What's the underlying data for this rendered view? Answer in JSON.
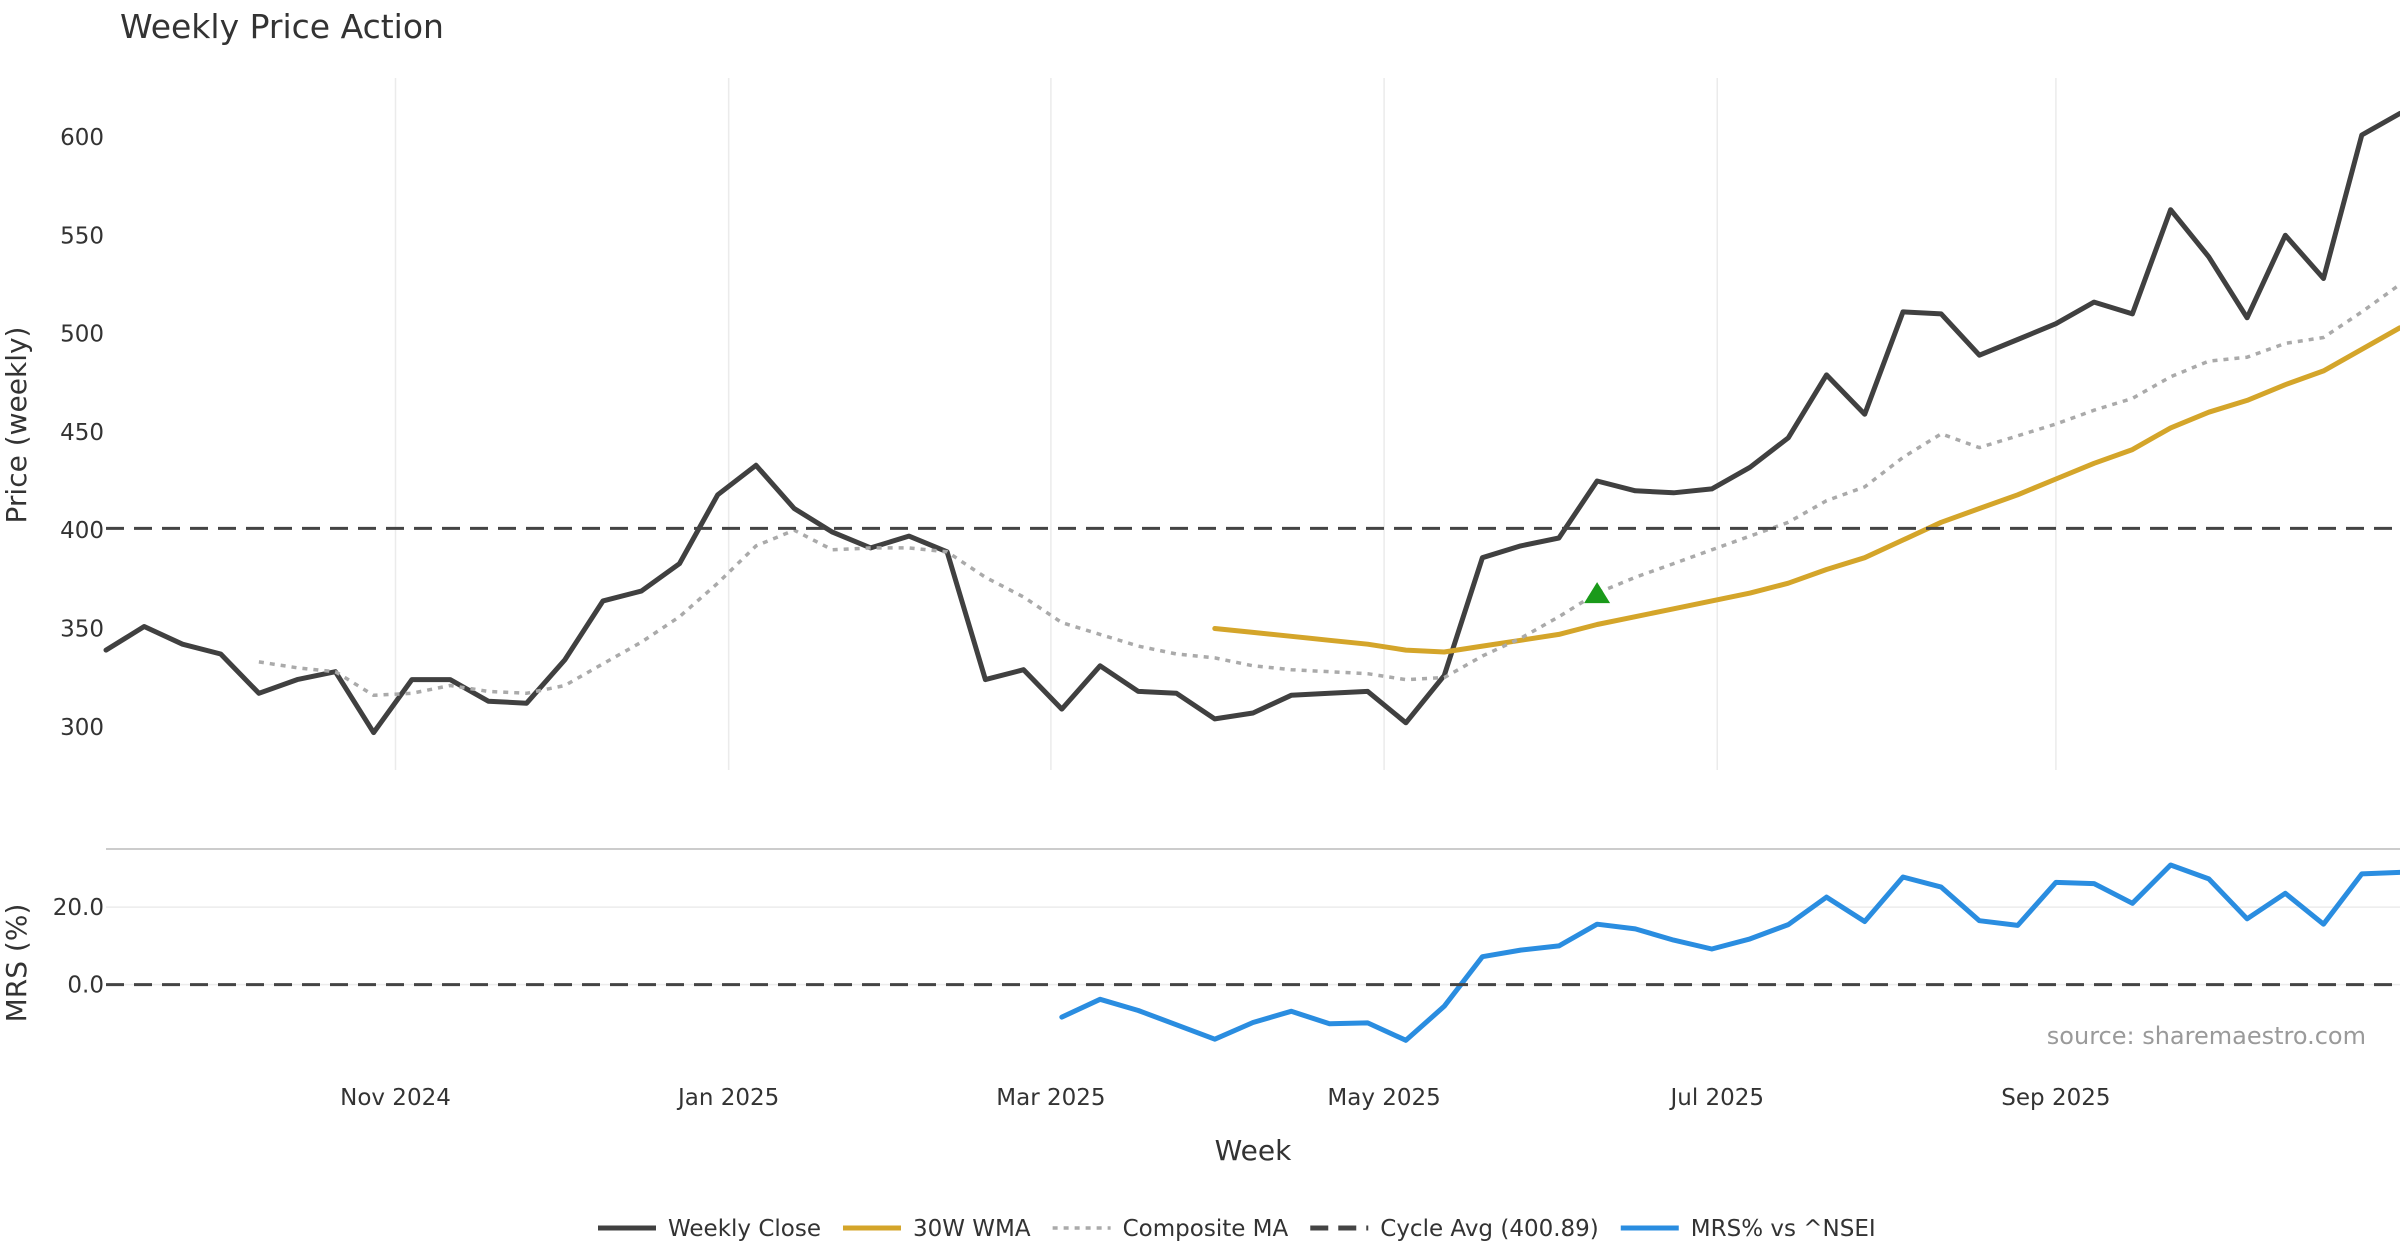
{
  "chart_data": {
    "title": "Weekly Price Action",
    "source_text": "source: sharemaestro.com",
    "xlabel": "Week",
    "x_tick_labels": [
      "Nov 2024",
      "Jan 2025",
      "Mar 2025",
      "May 2025",
      "Jul 2025",
      "Sep 2025"
    ],
    "panels": [
      {
        "name": "price",
        "type": "line",
        "ylabel": "Price (weekly)",
        "ylim": [
          278,
          630
        ],
        "yticks": [
          "300",
          "350",
          "400",
          "450",
          "500",
          "550",
          "600"
        ],
        "grid": true
      },
      {
        "name": "mrs",
        "type": "line",
        "ylabel": "MRS (%)",
        "ylim": [
          -20,
          34
        ],
        "yticks": [
          "0.0",
          "20.0"
        ],
        "grid": true
      }
    ],
    "series": [
      {
        "name": "Weekly Close",
        "panel": "price",
        "color": "#404040",
        "style": "solid",
        "x": [
          "2024-09-09",
          "2024-09-16",
          "2024-09-23",
          "2024-09-30",
          "2024-10-07",
          "2024-10-14",
          "2024-10-21",
          "2024-10-28",
          "2024-11-04",
          "2024-11-11",
          "2024-11-18",
          "2024-11-25",
          "2024-12-02",
          "2024-12-09",
          "2024-12-16",
          "2024-12-23",
          "2024-12-30",
          "2025-01-06",
          "2025-01-13",
          "2025-01-20",
          "2025-01-27",
          "2025-02-03",
          "2025-02-10",
          "2025-02-17",
          "2025-02-24",
          "2025-03-03",
          "2025-03-10",
          "2025-03-17",
          "2025-03-24",
          "2025-03-31",
          "2025-04-07",
          "2025-04-14",
          "2025-04-21",
          "2025-04-28",
          "2025-05-05",
          "2025-05-12",
          "2025-05-19",
          "2025-05-26",
          "2025-06-02",
          "2025-06-09",
          "2025-06-16",
          "2025-06-23",
          "2025-06-30",
          "2025-07-07",
          "2025-07-14",
          "2025-07-21",
          "2025-07-28",
          "2025-08-04",
          "2025-08-11",
          "2025-08-18",
          "2025-08-25",
          "2025-09-01",
          "2025-09-08",
          "2025-09-15",
          "2025-09-22",
          "2025-09-29",
          "2025-10-06",
          "2025-10-13",
          "2025-10-20",
          "2025-10-27",
          "2025-11-03"
        ],
        "values": [
          339,
          351,
          342,
          337,
          317,
          324,
          328,
          297,
          324,
          324,
          313,
          312,
          334,
          364,
          369,
          383,
          418,
          433,
          411,
          399,
          391,
          397,
          389,
          324,
          329,
          309,
          331,
          318,
          317,
          304,
          307,
          316,
          317,
          318,
          302,
          326,
          386,
          392,
          396,
          425,
          420,
          419,
          421,
          432,
          447,
          479,
          459,
          511,
          510,
          489,
          497,
          505,
          516,
          510,
          563,
          539,
          508,
          550,
          528,
          601,
          612
        ]
      },
      {
        "name": "30W WMA",
        "panel": "price",
        "color": "#d4a52a",
        "style": "solid",
        "x": [
          "2025-03-31",
          "2025-04-07",
          "2025-04-14",
          "2025-04-21",
          "2025-04-28",
          "2025-05-05",
          "2025-05-12",
          "2025-05-19",
          "2025-05-26",
          "2025-06-02",
          "2025-06-09",
          "2025-06-16",
          "2025-06-23",
          "2025-06-30",
          "2025-07-07",
          "2025-07-14",
          "2025-07-21",
          "2025-07-28",
          "2025-08-04",
          "2025-08-11",
          "2025-08-18",
          "2025-08-25",
          "2025-09-01",
          "2025-09-08",
          "2025-09-15",
          "2025-09-22",
          "2025-09-29",
          "2025-10-06",
          "2025-10-13",
          "2025-10-20",
          "2025-10-27",
          "2025-11-03"
        ],
        "values": [
          350,
          348,
          346,
          344,
          342,
          339,
          338,
          341,
          344,
          347,
          352,
          356,
          360,
          364,
          368,
          373,
          380,
          386,
          395,
          404,
          411,
          418,
          426,
          434,
          441,
          452,
          460,
          466,
          474,
          481,
          492,
          503
        ]
      },
      {
        "name": "Composite MA",
        "panel": "price",
        "color": "#aaaaaa",
        "style": "dotted",
        "x": [
          "2024-10-07",
          "2024-10-14",
          "2024-10-21",
          "2024-10-28",
          "2024-11-04",
          "2024-11-11",
          "2024-11-18",
          "2024-11-25",
          "2024-12-02",
          "2024-12-09",
          "2024-12-16",
          "2024-12-23",
          "2024-12-30",
          "2025-01-06",
          "2025-01-13",
          "2025-01-20",
          "2025-01-27",
          "2025-02-03",
          "2025-02-10",
          "2025-02-17",
          "2025-02-24",
          "2025-03-03",
          "2025-03-10",
          "2025-03-17",
          "2025-03-24",
          "2025-03-31",
          "2025-04-07",
          "2025-04-14",
          "2025-04-21",
          "2025-04-28",
          "2025-05-05",
          "2025-05-12",
          "2025-05-19",
          "2025-05-26",
          "2025-06-02",
          "2025-06-09",
          "2025-06-16",
          "2025-06-23",
          "2025-06-30",
          "2025-07-07",
          "2025-07-14",
          "2025-07-21",
          "2025-07-28",
          "2025-08-04",
          "2025-08-11",
          "2025-08-18",
          "2025-08-25",
          "2025-09-01",
          "2025-09-08",
          "2025-09-15",
          "2025-09-22",
          "2025-09-29",
          "2025-10-06",
          "2025-10-13",
          "2025-10-20",
          "2025-10-27",
          "2025-11-03"
        ],
        "values": [
          333,
          330,
          328,
          316,
          317,
          321,
          318,
          317,
          321,
          332,
          343,
          356,
          373,
          392,
          400,
          390,
          391,
          391,
          389,
          376,
          366,
          353,
          347,
          341,
          337,
          335,
          331,
          329,
          328,
          327,
          324,
          325,
          336,
          345,
          356,
          368,
          376,
          383,
          390,
          397,
          404,
          415,
          422,
          437,
          449,
          442,
          448,
          454,
          461,
          467,
          478,
          486,
          488,
          495,
          498,
          511,
          525
        ]
      },
      {
        "name": "Cycle Avg (400.89)",
        "panel": "price",
        "color": "#444444",
        "style": "dashed",
        "value": 400.89
      },
      {
        "name": "MRS% vs ^NSEI",
        "panel": "mrs",
        "color": "#2a8de0",
        "style": "solid",
        "x": [
          "2025-03-03",
          "2025-03-10",
          "2025-03-17",
          "2025-03-24",
          "2025-03-31",
          "2025-04-07",
          "2025-04-14",
          "2025-04-21",
          "2025-04-28",
          "2025-05-05",
          "2025-05-12",
          "2025-05-19",
          "2025-05-26",
          "2025-06-02",
          "2025-06-09",
          "2025-06-16",
          "2025-06-23",
          "2025-06-30",
          "2025-07-07",
          "2025-07-14",
          "2025-07-21",
          "2025-07-28",
          "2025-08-04",
          "2025-08-11",
          "2025-08-18",
          "2025-08-25",
          "2025-09-01",
          "2025-09-08",
          "2025-09-15",
          "2025-09-22",
          "2025-09-29",
          "2025-10-06",
          "2025-10-13",
          "2025-10-20",
          "2025-10-27",
          "2025-11-03"
        ],
        "values": [
          -8.4,
          -3.8,
          -6.7,
          -10.4,
          -14.1,
          -9.8,
          -6.9,
          -10.1,
          -9.9,
          -14.4,
          -5.6,
          7.2,
          8.9,
          10.0,
          15.6,
          14.4,
          11.5,
          9.2,
          11.8,
          15.5,
          22.6,
          16.3,
          27.8,
          25.2,
          16.5,
          15.3,
          26.4,
          26.1,
          21.0,
          30.9,
          27.3,
          17.0,
          23.6,
          15.6,
          28.6,
          29.0
        ]
      },
      {
        "name": "MRS zero line",
        "panel": "mrs",
        "color": "#444444",
        "style": "dashed",
        "value": 0
      }
    ],
    "markers": [
      {
        "panel": "price",
        "shape": "triangle-up",
        "color": "#1a9a1a",
        "x": "2025-06-09",
        "value": 368
      }
    ],
    "x_range": [
      "2024-09-09",
      "2025-11-03"
    ],
    "legend": {
      "position": "bottom-center",
      "entries": [
        {
          "label": "Weekly Close",
          "color": "#404040",
          "style": "solid"
        },
        {
          "label": "30W WMA",
          "color": "#d4a52a",
          "style": "solid"
        },
        {
          "label": "Composite MA",
          "color": "#aaaaaa",
          "style": "dotted"
        },
        {
          "label": "Cycle Avg (400.89)",
          "color": "#444444",
          "style": "dashed"
        },
        {
          "label": "MRS% vs ^NSEI",
          "color": "#2a8de0",
          "style": "solid"
        }
      ]
    }
  }
}
